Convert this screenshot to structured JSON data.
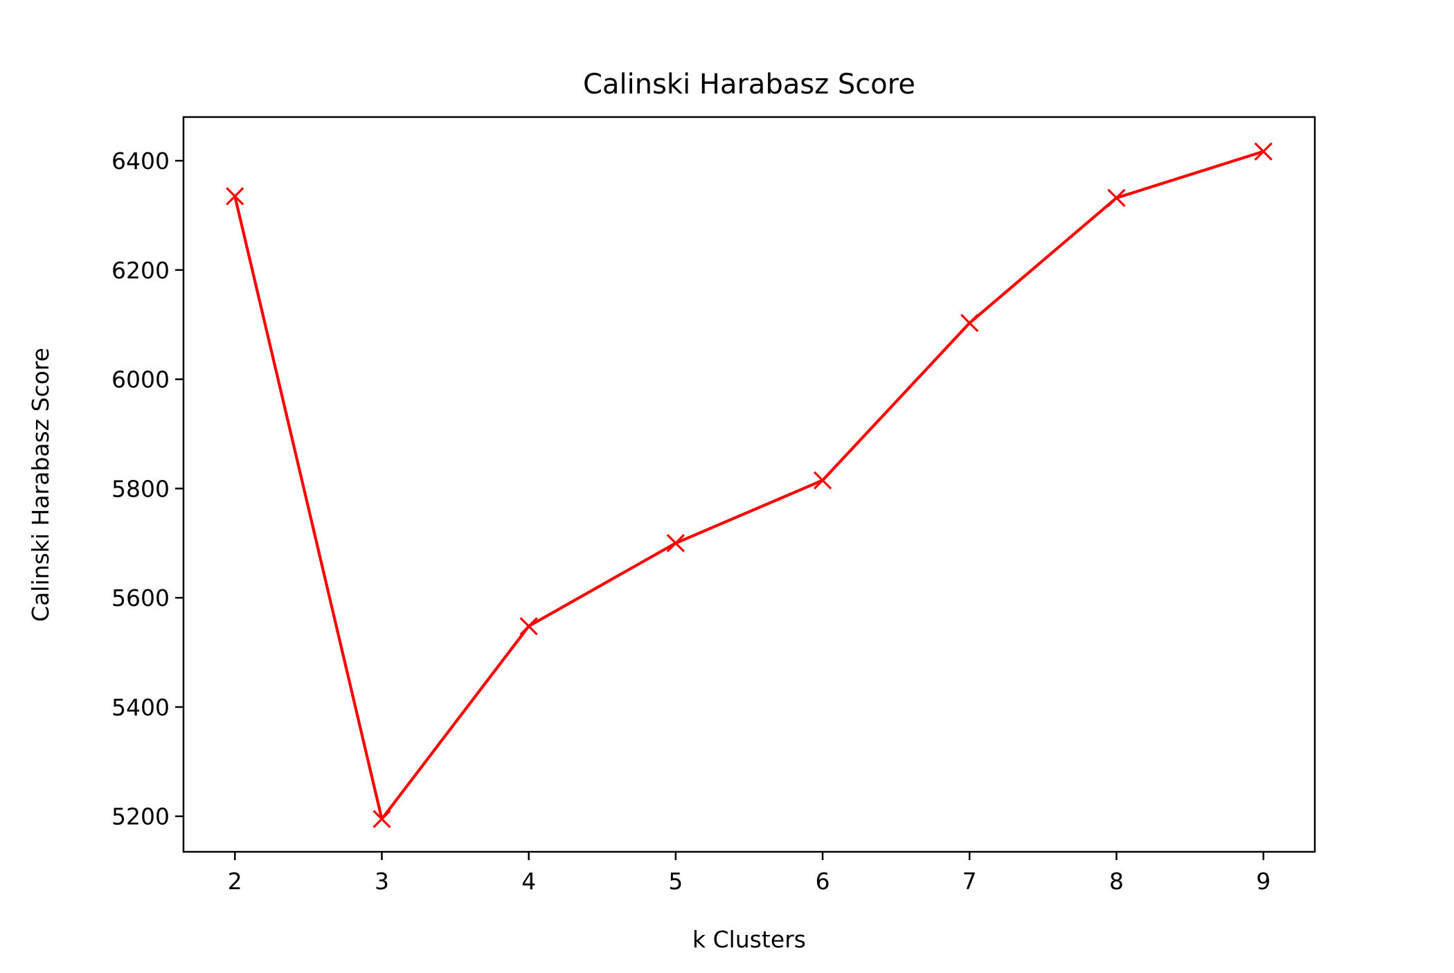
{
  "chart_data": {
    "type": "line",
    "title": "Calinski Harabasz Score",
    "xlabel": "k Clusters",
    "ylabel": "Calinski Harabasz Score",
    "x": [
      2,
      3,
      4,
      5,
      6,
      7,
      8,
      9
    ],
    "xticks": [
      2,
      3,
      4,
      5,
      6,
      7,
      8,
      9
    ],
    "yticks": [
      5200,
      5400,
      5600,
      5800,
      6000,
      6200,
      6400
    ],
    "xlim": [
      1.65,
      9.35
    ],
    "ylim": [
      5135,
      6480
    ],
    "grid": false,
    "legend": "none",
    "series": [
      {
        "values": [
          6335,
          5195,
          5548,
          5700,
          5815,
          6103,
          6332,
          6417
        ],
        "color": "#ff0000",
        "marker": "x"
      }
    ]
  }
}
